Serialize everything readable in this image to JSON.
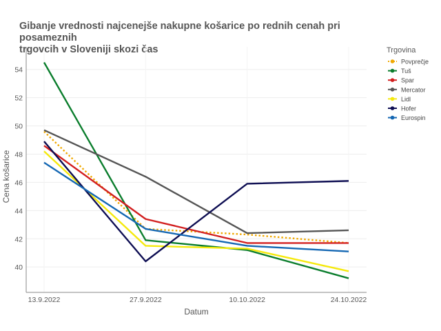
{
  "chart_data": {
    "type": "line",
    "title": "Gibanje vrednosti najcenejše nakupne košarice  po rednih cenah pri posameznih\n trgovcih v Sloveniji skozi čas",
    "xlabel": "Datum",
    "ylabel": "Cena košarice",
    "categories": [
      "13.9.2022",
      "27.9.2022",
      "10.10.2022",
      "24.10.2022"
    ],
    "ylim": [
      38.2,
      55.6
    ],
    "yticks": [
      40,
      42,
      44,
      46,
      48,
      50,
      52,
      54
    ],
    "grid": true,
    "legend_title": "Trgovina",
    "legend_position": "right",
    "series": [
      {
        "name": "Povprečje",
        "color": "#f0a800",
        "dashed": true,
        "values": [
          49.6,
          42.7,
          42.3,
          41.7
        ]
      },
      {
        "name": "Tuš",
        "color": "#0a7d2c",
        "dashed": false,
        "values": [
          54.5,
          41.9,
          41.2,
          39.2
        ]
      },
      {
        "name": "Spar",
        "color": "#d21f1f",
        "dashed": false,
        "values": [
          48.6,
          43.4,
          41.7,
          41.7
        ]
      },
      {
        "name": "Mercator",
        "color": "#555555",
        "dashed": false,
        "values": [
          49.7,
          46.4,
          42.4,
          42.6
        ]
      },
      {
        "name": "Lidl",
        "color": "#f5e90c",
        "dashed": false,
        "values": [
          48.2,
          41.5,
          41.3,
          39.7
        ]
      },
      {
        "name": "Hofer",
        "color": "#0d0d52",
        "dashed": false,
        "values": [
          48.9,
          40.4,
          45.9,
          46.1
        ]
      },
      {
        "name": "Eurospin",
        "color": "#1467b3",
        "dashed": false,
        "values": [
          47.4,
          42.7,
          41.5,
          41.1
        ]
      }
    ]
  }
}
